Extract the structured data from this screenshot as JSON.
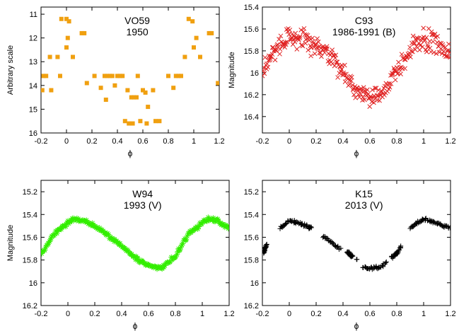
{
  "chart_data": [
    {
      "type": "scatter",
      "title": "VO59",
      "subtitle": "1950",
      "xlabel": "ϕ",
      "ylabel": "Arbitrary scale",
      "xlim": [
        -0.2,
        1.2
      ],
      "ylim": [
        16,
        10.7
      ],
      "y_inverted": true,
      "xticks": [
        "-0.2",
        "0",
        "0.2",
        "0.4",
        "0.6",
        "0.8",
        "1",
        "1.2"
      ],
      "yticks": [
        "11",
        "12",
        "13",
        "14",
        "15",
        "16"
      ],
      "marker": "square",
      "color": "#f0a010",
      "series": [
        {
          "points": [
            [
              -0.19,
              14.2
            ],
            [
              -0.18,
              13.6
            ],
            [
              -0.16,
              13.6
            ],
            [
              -0.13,
              12.8
            ],
            [
              -0.12,
              14.2
            ],
            [
              -0.07,
              12.8
            ],
            [
              -0.05,
              13.6
            ],
            [
              -0.04,
              11.2
            ],
            [
              0.0,
              11.2
            ],
            [
              0.0,
              12.4
            ],
            [
              0.01,
              12.0
            ],
            [
              0.02,
              11.3
            ],
            [
              0.05,
              12.8
            ],
            [
              0.12,
              11.8
            ],
            [
              0.14,
              11.8
            ],
            [
              0.16,
              13.9
            ],
            [
              0.22,
              13.6
            ],
            [
              0.27,
              14.1
            ],
            [
              0.3,
              13.6
            ],
            [
              0.31,
              14.6
            ],
            [
              0.32,
              13.6
            ],
            [
              0.34,
              13.6
            ],
            [
              0.36,
              13.6
            ],
            [
              0.38,
              14.0
            ],
            [
              0.4,
              13.6
            ],
            [
              0.42,
              13.6
            ],
            [
              0.44,
              13.6
            ],
            [
              0.46,
              15.5
            ],
            [
              0.48,
              14.2
            ],
            [
              0.49,
              15.6
            ],
            [
              0.51,
              14.5
            ],
            [
              0.52,
              15.6
            ],
            [
              0.53,
              14.5
            ],
            [
              0.55,
              14.5
            ],
            [
              0.56,
              13.6
            ],
            [
              0.58,
              15.5
            ],
            [
              0.6,
              14.2
            ],
            [
              0.62,
              14.3
            ],
            [
              0.63,
              15.6
            ],
            [
              0.64,
              14.9
            ],
            [
              0.68,
              14.2
            ],
            [
              0.7,
              15.5
            ],
            [
              0.73,
              15.5
            ],
            [
              0.8,
              13.6
            ],
            [
              0.84,
              14.1
            ],
            [
              0.86,
              13.6
            ],
            [
              0.88,
              13.6
            ],
            [
              0.9,
              13.6
            ],
            [
              0.93,
              12.8
            ],
            [
              0.96,
              11.2
            ],
            [
              0.99,
              11.3
            ],
            [
              1.0,
              12.4
            ],
            [
              1.02,
              12.0
            ],
            [
              1.05,
              12.8
            ],
            [
              1.12,
              11.8
            ],
            [
              1.14,
              11.8
            ],
            [
              1.19,
              13.9
            ]
          ]
        }
      ]
    },
    {
      "type": "scatter",
      "title": "C93",
      "subtitle": "1986-1991 (B)",
      "xlabel": "ϕ",
      "ylabel": "Magnitude",
      "xlim": [
        -0.2,
        1.2
      ],
      "ylim": [
        16.55,
        15.4
      ],
      "y_inverted": true,
      "xticks": [
        "-0.2",
        "0",
        "0.2",
        "0.4",
        "0.6",
        "0.8",
        "1",
        "1.2"
      ],
      "yticks": [
        "15.4",
        "15.6",
        "15.8",
        "16",
        "16.2",
        "16.4"
      ],
      "marker": "x",
      "color": "#e02020",
      "curve": {
        "x": [
          -0.2,
          -0.1,
          0.0,
          0.1,
          0.2,
          0.3,
          0.4,
          0.5,
          0.6,
          0.7,
          0.8,
          0.9,
          1.0,
          1.1,
          1.2
        ],
        "y": [
          16.0,
          15.78,
          15.68,
          15.7,
          15.76,
          15.84,
          15.98,
          16.14,
          16.26,
          16.18,
          16.0,
          15.8,
          15.68,
          15.72,
          15.82
        ]
      },
      "scatter_amplitude": 0.08,
      "n_points": 300
    },
    {
      "type": "scatter",
      "title": "W94",
      "subtitle": "1993 (V)",
      "xlabel": "ϕ",
      "ylabel": "Magnitude",
      "xlim": [
        -0.2,
        1.2
      ],
      "ylim": [
        16.2,
        15.1
      ],
      "y_inverted": true,
      "xticks": [
        "-0.2",
        "0",
        "0.2",
        "0.4",
        "0.6",
        "0.8",
        "1",
        "1.2"
      ],
      "yticks": [
        "15.2",
        "15.4",
        "15.6",
        "15.8",
        "16",
        "16.2"
      ],
      "marker": "star",
      "color": "#33ee00",
      "curve": {
        "x": [
          -0.2,
          -0.1,
          0.0,
          0.05,
          0.1,
          0.2,
          0.3,
          0.4,
          0.5,
          0.6,
          0.7,
          0.8,
          0.9,
          1.0,
          1.05,
          1.1,
          1.2
        ],
        "y": [
          15.75,
          15.57,
          15.47,
          15.44,
          15.45,
          15.5,
          15.58,
          15.68,
          15.78,
          15.85,
          15.87,
          15.76,
          15.57,
          15.47,
          15.44,
          15.45,
          15.52
        ]
      },
      "scatter_amplitude": 0.015,
      "n_points": 210
    },
    {
      "type": "scatter",
      "title": "K15",
      "subtitle": "2013 (V)",
      "xlabel": "ϕ",
      "ylabel": "",
      "xlim": [
        -0.2,
        1.2
      ],
      "ylim": [
        16.2,
        15.1
      ],
      "y_inverted": true,
      "xticks": [
        "-0.2",
        "0",
        "0.2",
        "0.4",
        "0.6",
        "0.8",
        "1",
        "1.2"
      ],
      "yticks": [
        "15.2",
        "15.4",
        "15.6",
        "15.8",
        "16",
        "16.2"
      ],
      "marker": "plus",
      "color": "#000000",
      "segments": [
        {
          "x": [
            -0.19,
            -0.17
          ],
          "y": [
            15.73,
            15.67
          ]
        },
        {
          "x": [
            -0.07,
            0.0,
            0.05,
            0.1,
            0.15,
            0.17
          ],
          "y": [
            15.52,
            15.45,
            15.47,
            15.49,
            15.51,
            15.52
          ]
        },
        {
          "x": [
            0.25,
            0.3,
            0.35,
            0.38
          ],
          "y": [
            15.59,
            15.63,
            15.68,
            15.7
          ]
        },
        {
          "x": [
            0.43,
            0.47
          ],
          "y": [
            15.73,
            15.77
          ]
        },
        {
          "x": [
            0.5
          ],
          "y": [
            15.8
          ]
        },
        {
          "x": [
            0.55,
            0.6,
            0.65,
            0.7,
            0.72
          ],
          "y": [
            15.86,
            15.87,
            15.87,
            15.85,
            15.82
          ]
        },
        {
          "x": [
            0.76,
            0.8,
            0.83
          ],
          "y": [
            15.78,
            15.74,
            15.69
          ]
        },
        {
          "x": [
            0.9,
            0.95,
            1.0,
            1.05,
            1.1,
            1.15,
            1.2
          ],
          "y": [
            15.52,
            15.47,
            15.44,
            15.46,
            15.48,
            15.5,
            15.51
          ]
        }
      ],
      "scatter_amplitude": 0.012,
      "n_points": 200
    }
  ]
}
